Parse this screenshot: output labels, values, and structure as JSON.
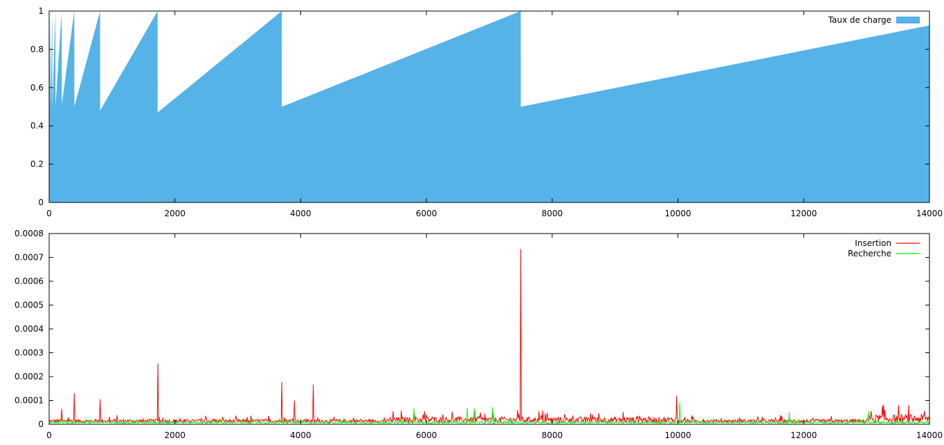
{
  "chart_data": [
    {
      "type": "area",
      "title": "",
      "xlabel": "",
      "ylabel": "",
      "xlim": [
        0,
        14000
      ],
      "ylim": [
        0,
        1
      ],
      "xticks": [
        0,
        2000,
        4000,
        6000,
        8000,
        10000,
        12000,
        14000
      ],
      "yticks": [
        "0",
        "0.2",
        "0.4",
        "0.6",
        "0.8",
        "1"
      ],
      "grid": false,
      "legend_position": "top-right",
      "series": [
        {
          "name": "Taux de charge",
          "color": "#56b3e7",
          "x": [
            0,
            12,
            13,
            25,
            26,
            50,
            51,
            100,
            101,
            200,
            201,
            400,
            401,
            810,
            811,
            1725,
            1726,
            3700,
            3701,
            7500,
            7501,
            14000
          ],
          "values": [
            0.5,
            1.0,
            0.5,
            1.0,
            0.5,
            1.0,
            0.5,
            1.0,
            0.5,
            1.0,
            0.51,
            1.0,
            0.5,
            1.0,
            0.48,
            1.0,
            0.47,
            1.0,
            0.5,
            1.0,
            0.5,
            0.925
          ]
        }
      ]
    },
    {
      "type": "line",
      "title": "",
      "xlabel": "",
      "ylabel": "",
      "xlim": [
        0,
        14000
      ],
      "ylim": [
        0,
        0.0008
      ],
      "xticks": [
        0,
        2000,
        4000,
        6000,
        8000,
        10000,
        12000,
        14000
      ],
      "yticks": [
        "0",
        "0.0001",
        "0.0002",
        "0.0003",
        "0.0004",
        "0.0005",
        "0.0006",
        "0.0007",
        "0.0008"
      ],
      "grid": false,
      "legend_position": "top-right",
      "series": [
        {
          "name": "Insertion",
          "color": "#ff0000",
          "baseline": 1.2e-05,
          "noise_sections": [
            {
              "from": 0,
              "to": 5400,
              "level": 1.5e-05
            },
            {
              "from": 5400,
              "to": 7500,
              "level": 2.5e-05
            },
            {
              "from": 7500,
              "to": 10000,
              "level": 2.5e-05
            },
            {
              "from": 10000,
              "to": 13000,
              "level": 1.5e-05
            },
            {
              "from": 13000,
              "to": 14000,
              "level": 3.5e-05
            }
          ],
          "spikes": [
            {
              "x": 200,
              "y": 6.5e-05
            },
            {
              "x": 400,
              "y": 0.00013
            },
            {
              "x": 810,
              "y": 0.000105
            },
            {
              "x": 1725,
              "y": 0.000255
            },
            {
              "x": 3700,
              "y": 0.000178
            },
            {
              "x": 3900,
              "y": 0.0001
            },
            {
              "x": 4200,
              "y": 0.000167
            },
            {
              "x": 7500,
              "y": 0.000735
            },
            {
              "x": 9980,
              "y": 0.00012
            }
          ]
        },
        {
          "name": "Recherche",
          "color": "#00ff00",
          "baseline": 8e-06,
          "noise_sections": [
            {
              "from": 0,
              "to": 14000,
              "level": 8e-06
            }
          ],
          "spikes": [
            {
              "x": 5800,
              "y": 6.8e-05
            },
            {
              "x": 6650,
              "y": 7e-05
            },
            {
              "x": 6760,
              "y": 6.8e-05
            },
            {
              "x": 7050,
              "y": 7.2e-05
            },
            {
              "x": 10030,
              "y": 9.2e-05
            },
            {
              "x": 11770,
              "y": 5e-05
            },
            {
              "x": 13030,
              "y": 5.5e-05
            }
          ]
        }
      ]
    }
  ]
}
